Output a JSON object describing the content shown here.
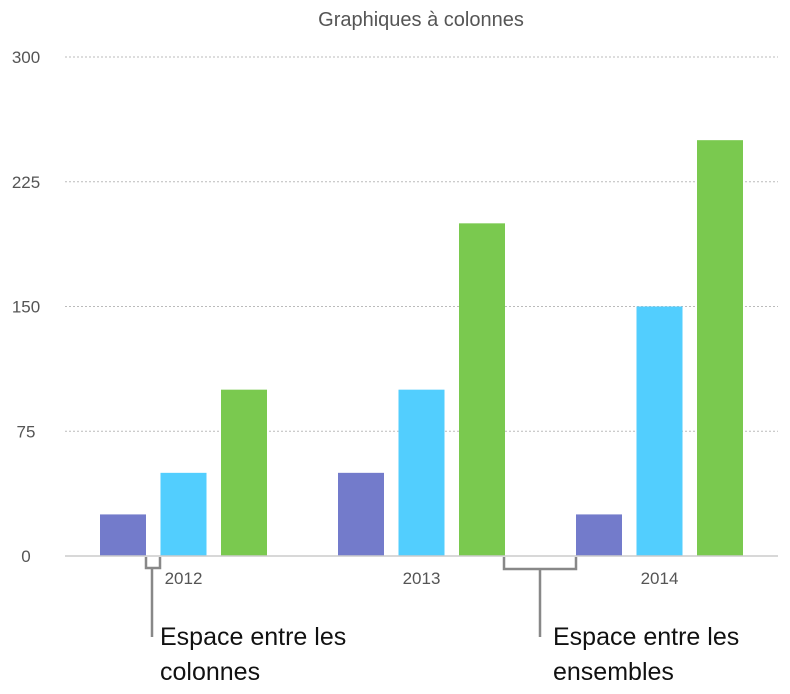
{
  "chart_data": {
    "type": "bar",
    "title": "Graphiques à colonnes",
    "categories": [
      "2012",
      "2013",
      "2014"
    ],
    "series": [
      {
        "values": [
          25,
          50,
          25
        ],
        "color": "#737bcb"
      },
      {
        "values": [
          50,
          100,
          150
        ],
        "color": "#52cefe"
      },
      {
        "values": [
          100,
          200,
          250
        ],
        "color": "#7ac94f"
      }
    ],
    "ylim": [
      0,
      300
    ],
    "yticks": [
      "0",
      "75",
      "150",
      "225",
      "300"
    ],
    "grid": true,
    "xlabel": "",
    "ylabel": "",
    "annotations": [
      {
        "lines": [
          "Espace entre les",
          "colonnes"
        ]
      },
      {
        "lines": [
          "Espace entre les",
          "ensembles"
        ]
      }
    ]
  }
}
